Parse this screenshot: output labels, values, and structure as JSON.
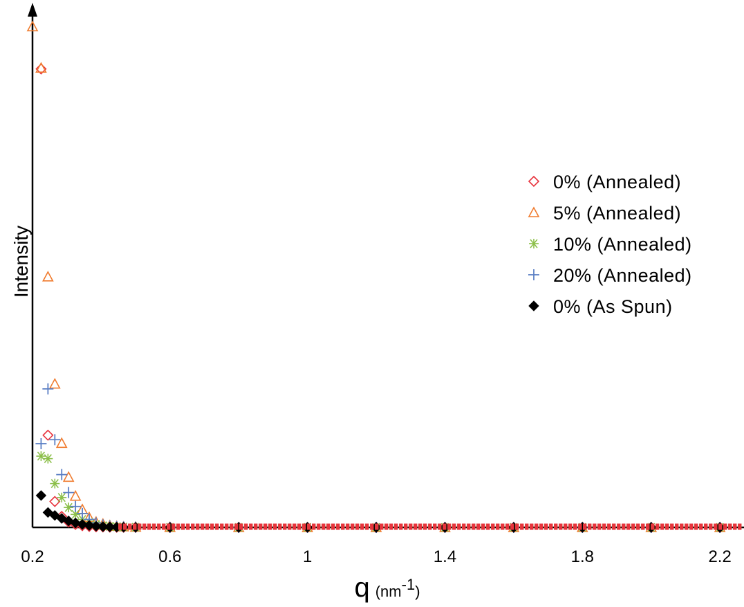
{
  "chart_data": {
    "type": "scatter",
    "title": "",
    "xlabel": "q",
    "xlabel_unit": "(nm",
    "xlabel_unit_sup": "-1",
    "xlabel_unit_close": ")",
    "ylabel": "Intensity",
    "xlim": [
      0.2,
      2.25
    ],
    "ylim": [
      0,
      100
    ],
    "xticks": [
      "0.2",
      "0.6",
      "1",
      "1.4",
      "1.8",
      "2.2"
    ],
    "xtick_values": [
      0.2,
      0.6,
      1.0,
      1.4,
      1.8,
      2.2
    ],
    "y_ticks_shown": false,
    "grid": false,
    "legend_position": "right",
    "series": [
      {
        "name": "0% (Annealed)",
        "marker": "diamond-open",
        "color": "#e8323c",
        "x": [
          0.225,
          0.245,
          0.265,
          0.285,
          0.305,
          0.325,
          0.345,
          0.365,
          0.385,
          0.405,
          0.425,
          0.445,
          0.465,
          0.5,
          0.6,
          0.8,
          1.0,
          1.2,
          1.4,
          1.6,
          1.8,
          2.0,
          2.2
        ],
        "y": [
          92,
          18.5,
          5.2,
          2.2,
          1.1,
          0.6,
          0.35,
          0.2,
          0.12,
          0.08,
          0.05,
          0.03,
          0.02,
          0.01,
          0.0,
          0.0,
          0.0,
          0.0,
          0.0,
          0.0,
          0.0,
          0.0,
          0.0
        ]
      },
      {
        "name": "5% (Annealed)",
        "marker": "triangle-open",
        "color": "#f07b2e",
        "x": [
          0.2,
          0.225,
          0.245,
          0.265,
          0.285,
          0.305,
          0.325,
          0.345,
          0.365,
          0.385,
          0.405,
          0.425,
          0.445,
          0.465,
          0.5,
          0.6,
          0.8,
          1.0,
          1.2,
          1.4,
          1.6,
          1.8,
          2.0,
          2.2
        ],
        "y": [
          100.5,
          92.2,
          50.3,
          28.8,
          16.9,
          10.1,
          6.3,
          3.6,
          2.0,
          1.1,
          0.7,
          0.4,
          0.25,
          0.15,
          0.08,
          0.02,
          0.0,
          0.0,
          0.0,
          0.0,
          0.0,
          0.0,
          0.0,
          0.0
        ]
      },
      {
        "name": "10% (Annealed)",
        "marker": "asterisk",
        "color": "#8cbf4a",
        "x": [
          0.225,
          0.245,
          0.265,
          0.285,
          0.305,
          0.325,
          0.345,
          0.365,
          0.385,
          0.405,
          0.425,
          0.445,
          0.465,
          0.5,
          0.6,
          0.8,
          1.0,
          1.2,
          1.4,
          1.6,
          1.8,
          2.0,
          2.2
        ],
        "y": [
          14.3,
          13.8,
          8.8,
          6.0,
          4.0,
          2.6,
          1.6,
          1.0,
          0.6,
          0.35,
          0.2,
          0.12,
          0.08,
          0.04,
          0.01,
          0.0,
          0.0,
          0.0,
          0.0,
          0.0,
          0.0,
          0.0,
          0.0
        ]
      },
      {
        "name": "20% (Annealed)",
        "marker": "plus",
        "color": "#5b7fc4",
        "x": [
          0.225,
          0.245,
          0.265,
          0.285,
          0.305,
          0.325,
          0.345,
          0.365,
          0.385,
          0.405,
          0.425,
          0.445,
          0.465,
          0.5,
          0.6,
          0.8,
          1.0,
          1.2,
          1.4,
          1.6,
          1.8,
          2.0,
          2.2
        ],
        "y": [
          16.8,
          27.8,
          17.6,
          10.6,
          7.0,
          4.2,
          2.8,
          1.6,
          0.9,
          0.5,
          0.3,
          0.18,
          0.1,
          0.05,
          0.01,
          0.0,
          0.0,
          0.0,
          0.0,
          0.0,
          0.0,
          0.0,
          0.0
        ]
      },
      {
        "name": "0% (As Spun)",
        "marker": "diamond-filled",
        "color": "#000000",
        "x": [
          0.225,
          0.245,
          0.265,
          0.285,
          0.305,
          0.325,
          0.345,
          0.365,
          0.385,
          0.405,
          0.425,
          0.445,
          0.465,
          0.5,
          0.6,
          0.8,
          1.0,
          1.2,
          1.4,
          1.6,
          1.8,
          2.0,
          2.2
        ],
        "y": [
          6.4,
          3.0,
          2.4,
          1.8,
          1.3,
          0.9,
          0.6,
          0.4,
          0.25,
          0.15,
          0.1,
          0.06,
          0.04,
          0.02,
          0.01,
          0.0,
          0.0,
          0.0,
          0.0,
          0.0,
          0.0,
          0.0,
          0.0
        ]
      }
    ]
  }
}
